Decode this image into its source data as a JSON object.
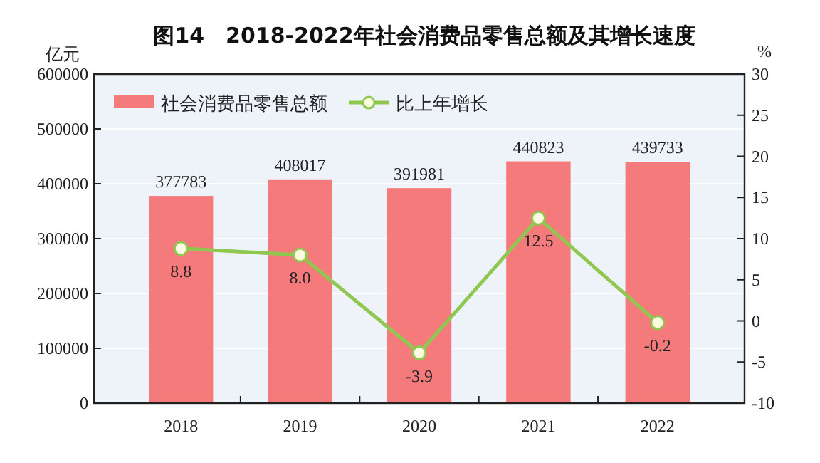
{
  "chart_data": {
    "type": "bar",
    "title": "图14　2018-2022年社会消费品零售总额及其增长速度",
    "ylabel": "亿元",
    "y2label": "%",
    "categories": [
      "2018",
      "2019",
      "2020",
      "2021",
      "2022"
    ],
    "series": [
      {
        "name": "社会消费品零售总额",
        "color": "#f47a7c",
        "values": [
          377783,
          408017,
          391981,
          440823,
          439733
        ]
      },
      {
        "name": "比上年增长",
        "type": "line",
        "axis": "y2",
        "color": "#8fc850",
        "values": [
          8.8,
          8.0,
          -3.9,
          12.5,
          -0.2
        ],
        "value_labels": [
          "8.8",
          "8.0",
          "-3.9",
          "12.5",
          "-0.2"
        ],
        "marker": "circle"
      }
    ],
    "ylim": [
      0,
      600000
    ],
    "yticks": [
      0,
      100000,
      200000,
      300000,
      400000,
      500000,
      600000
    ],
    "y2lim": [
      -10,
      30
    ],
    "y2ticks": [
      -10,
      -5,
      0,
      5,
      10,
      15,
      20,
      25,
      30
    ],
    "grid": "y",
    "legend": "top left",
    "data_labels": true
  }
}
